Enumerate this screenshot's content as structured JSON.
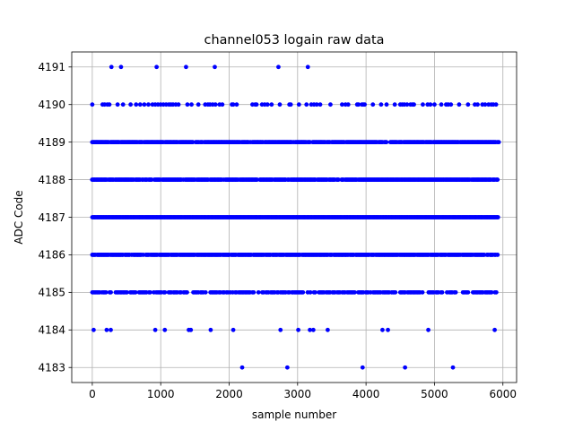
{
  "chart_data": {
    "type": "scatter",
    "title": "channel053 logain raw data",
    "xlabel": "sample number",
    "ylabel": "ADC Code",
    "xlim": [
      -300,
      6200
    ],
    "ylim": [
      4182.6,
      4191.4
    ],
    "xticks": [
      0,
      1000,
      2000,
      3000,
      4000,
      5000,
      6000
    ],
    "yticks": [
      4183,
      4184,
      4185,
      4186,
      4187,
      4188,
      4189,
      4190,
      4191
    ],
    "grid": true,
    "marker_color": "#0000ff",
    "sample_count": 5940,
    "series": [
      {
        "marker": "circle",
        "levels": [
          {
            "y": 4191,
            "x": [
              280,
              420,
              940,
              1370,
              1790,
              2720,
              3150
            ]
          },
          {
            "y": 4190,
            "density": "sparse",
            "x": [
              0,
              150,
              180,
              220,
              250,
              370,
              450,
              560,
              640,
              700,
              760,
              820,
              880,
              920,
              960,
              1000,
              1040,
              1080,
              1120,
              1150,
              1180,
              1220,
              1260,
              1390,
              1450,
              1550,
              1650,
              1690,
              1720,
              1760,
              1800,
              1860,
              1900,
              2040,
              2060,
              2110,
              2340,
              2380,
              2400,
              2480,
              2520,
              2560,
              2620,
              2740,
              2880,
              2900,
              3020,
              3130,
              3200,
              3240,
              3280,
              3330,
              3480,
              3650,
              3700,
              3740,
              3870,
              3890,
              3940,
              3960,
              3980,
              4100,
              4220,
              4300,
              4420,
              4500,
              4530,
              4560,
              4600,
              4650,
              4680,
              4700,
              4830,
              4900,
              4940,
              5000,
              5100,
              5170,
              5200,
              5240,
              5360,
              5490,
              5590,
              5630,
              5700,
              5740,
              5790,
              5830,
              5860,
              5900
            ]
          },
          {
            "y": 4189,
            "density": "dense",
            "x_from": 0,
            "x_to": 5930,
            "x_last": 5940
          },
          {
            "y": 4188,
            "density": "dense",
            "x_from": 0,
            "x_to": 5930
          },
          {
            "y": 4187,
            "density": "solid",
            "x_from": 0,
            "x_to": 5930
          },
          {
            "y": 4186,
            "density": "dense",
            "x_from": 0,
            "x_to": 5930
          },
          {
            "y": 4185,
            "density": "medium",
            "x_from": 0,
            "x_to": 5920
          },
          {
            "y": 4184,
            "x": [
              20,
              210,
              270,
              920,
              1060,
              1410,
              1440,
              1730,
              2060,
              2750,
              3010,
              3180,
              3230,
              3440,
              4240,
              4320,
              4910,
              5880
            ]
          },
          {
            "y": 4183,
            "x": [
              2190,
              2850,
              3950,
              4570,
              5270
            ]
          }
        ]
      }
    ]
  }
}
